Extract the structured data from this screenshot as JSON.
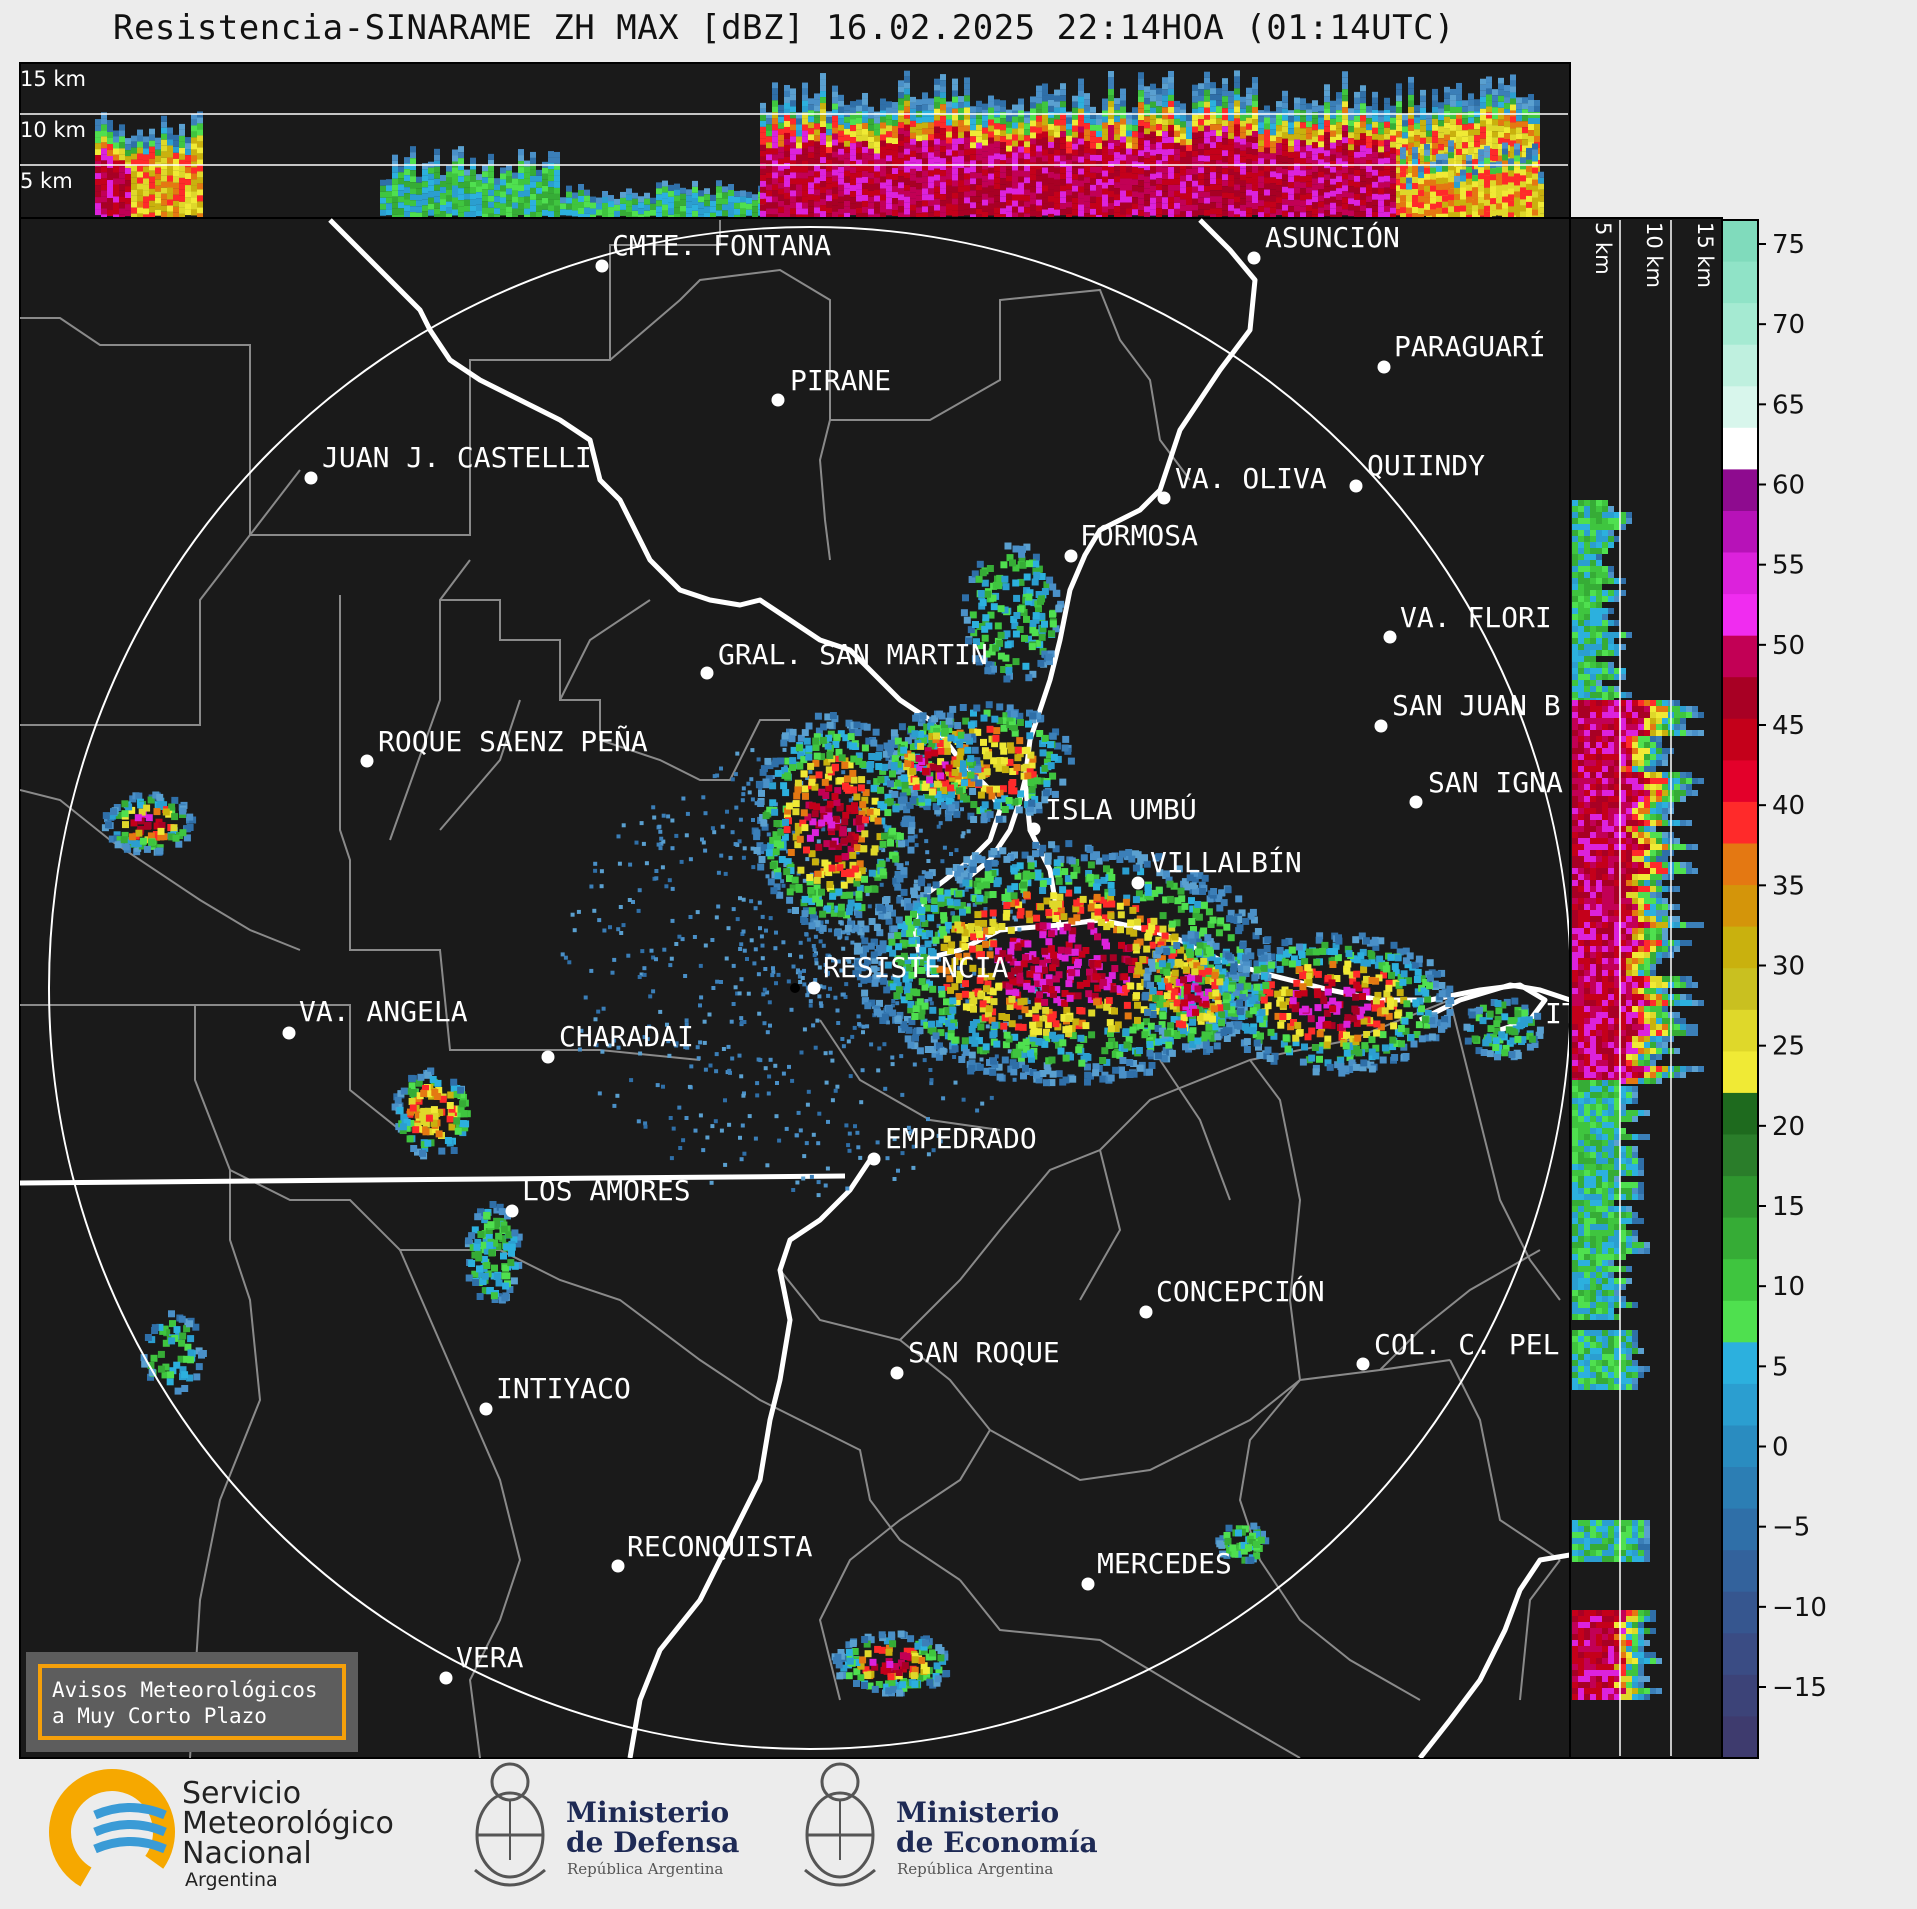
{
  "title": "Resistencia-SINARAME ZH MAX [dBZ] 16.02.2025 22:14HOA (01:14UTC)",
  "top_profile": {
    "height_labels": [
      "15 km",
      "10 km",
      "5 km"
    ]
  },
  "side_profile": {
    "height_labels": [
      "5 km",
      "10 km",
      "15 km"
    ]
  },
  "colorbar": {
    "ticks": [
      "75",
      "70",
      "65",
      "60",
      "55",
      "50",
      "45",
      "40",
      "35",
      "30",
      "25",
      "20",
      "15",
      "10",
      "5",
      "0",
      "−5",
      "−10",
      "−15"
    ]
  },
  "radar_site": "RESISTENCIA",
  "places": [
    {
      "name": "CMTE. FONTANA"
    },
    {
      "name": "ASUNCIÓN"
    },
    {
      "name": "PIRANE"
    },
    {
      "name": "PARAGUARÍ"
    },
    {
      "name": "JUAN J. CASTELLI"
    },
    {
      "name": "VA. OLIVA"
    },
    {
      "name": "QUIINDY"
    },
    {
      "name": "FORMOSA"
    },
    {
      "name": "VA. FLORI"
    },
    {
      "name": "GRAL. SAN MARTIN"
    },
    {
      "name": "SAN JUAN B"
    },
    {
      "name": "ROQUE SAENZ PEÑA"
    },
    {
      "name": "SAN IGNA"
    },
    {
      "name": "ISLA UMBÚ"
    },
    {
      "name": "VILLALBÍN"
    },
    {
      "name": "RESISTENCIA"
    },
    {
      "name": "VA. ANGELA"
    },
    {
      "name": "CHARADAI"
    },
    {
      "name": "EMPEDRADO"
    },
    {
      "name": "LOS AMORES"
    },
    {
      "name": "CONCEPCIÓN"
    },
    {
      "name": "SAN ROQUE"
    },
    {
      "name": "COL. C. PEL"
    },
    {
      "name": "INTIYACO"
    },
    {
      "name": "RECONQUISTA"
    },
    {
      "name": "MERCEDES"
    },
    {
      "name": "VERA"
    },
    {
      "name": "IT"
    }
  ],
  "warning_box": {
    "line1": "Avisos Meteorológicos",
    "line2": "a Muy Corto Plazo"
  },
  "logos": {
    "smn": {
      "line1": "Servicio",
      "line2": "Meteorológico",
      "line3": "Nacional",
      "line4": "Argentina"
    },
    "defensa": {
      "line1": "Ministerio",
      "line2": "de Defensa",
      "line3": "República Argentina"
    },
    "economia": {
      "line1": "Ministerio",
      "line2": "de Economía",
      "line3": "República Argentina"
    }
  }
}
